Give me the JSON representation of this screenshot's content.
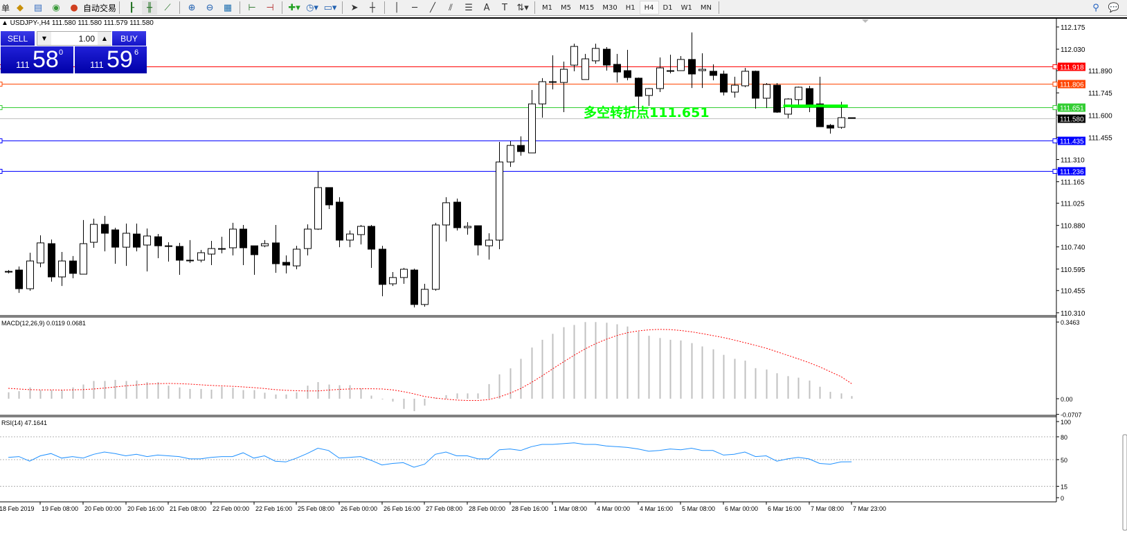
{
  "toolbar": {
    "menu_fragment": "单",
    "autotrade_label": "自动交易",
    "icons": [
      "orders-icon",
      "navigator-icon",
      "signal-icon",
      "autotrade-icon",
      "bar-chart-icon",
      "candlestick-icon",
      "line-chart-icon",
      "zoom-in-icon",
      "zoom-out-icon",
      "tile-windows-icon",
      "chart-shift-icon",
      "autoscroll-icon",
      "indicators-icon",
      "periods-icon",
      "templates-icon",
      "cursor-icon",
      "crosshair-icon",
      "vertical-line-icon",
      "horizontal-line-icon",
      "trendline-icon",
      "equidistant-channel-icon",
      "fibonacci-icon",
      "text-icon",
      "text-label-icon",
      "arrows-icon"
    ],
    "timeframes": [
      "M1",
      "M5",
      "M15",
      "M30",
      "H1",
      "H4",
      "D1",
      "W1",
      "MN"
    ],
    "active_timeframe": "H4",
    "search_icon": "search-icon",
    "chat_icon": "chat-icon"
  },
  "chart_header": "▲ USDJPY-,H4  111.580 111.580 111.579 111.580",
  "trade_panel": {
    "sell_label": "SELL",
    "buy_label": "BUY",
    "lot_value": "1.00",
    "sell_price": {
      "small": "111",
      "big": "58",
      "sup": "0"
    },
    "buy_price": {
      "small": "111",
      "big": "59",
      "sup": "6"
    }
  },
  "annotation": {
    "text": "多空转折点111.651",
    "color": "#00ff00"
  },
  "chart_data": [
    {
      "type": "candlestick",
      "symbol": "USDJPY-",
      "timeframe": "H4",
      "ylim": [
        110.31,
        112.175
      ],
      "price_ticks": [
        "112.175",
        "112.030",
        "111.890",
        "111.745",
        "111.600",
        "111.455",
        "111.310",
        "111.165",
        "111.025",
        "110.880",
        "110.740",
        "110.595",
        "110.455",
        "110.310"
      ],
      "x_tick_labels": [
        "18 Feb 2019",
        "19 Feb 08:00",
        "20 Feb 00:00",
        "20 Feb 16:00",
        "21 Feb 08:00",
        "22 Feb 00:00",
        "22 Feb 16:00",
        "25 Feb 08:00",
        "26 Feb 00:00",
        "26 Feb 16:00",
        "27 Feb 08:00",
        "28 Feb 00:00",
        "28 Feb 16:00",
        "1 Mar 08:00",
        "4 Mar 00:00",
        "4 Mar 16:00",
        "5 Mar 08:00",
        "6 Mar 00:00",
        "6 Mar 16:00",
        "7 Mar 08:00",
        "7 Mar 23:00"
      ],
      "ohlc": [
        [
          110.576,
          110.589,
          110.567,
          110.58
        ],
        [
          110.589,
          110.612,
          110.44,
          110.467
        ],
        [
          110.467,
          110.702,
          110.454,
          110.648
        ],
        [
          110.635,
          110.815,
          110.607,
          110.766
        ],
        [
          110.761,
          110.788,
          110.513,
          110.544
        ],
        [
          110.544,
          110.707,
          110.485,
          110.648
        ],
        [
          110.648,
          110.68,
          110.535,
          110.567
        ],
        [
          110.562,
          110.915,
          110.562,
          110.761
        ],
        [
          110.77,
          110.924,
          110.734,
          110.887
        ],
        [
          110.887,
          110.942,
          110.711,
          110.829
        ],
        [
          110.851,
          110.865,
          110.63,
          110.738
        ],
        [
          110.738,
          110.892,
          110.616,
          110.829
        ],
        [
          110.824,
          110.892,
          110.711,
          110.738
        ],
        [
          110.752,
          110.86,
          110.58,
          110.811
        ],
        [
          110.806,
          110.824,
          110.666,
          110.747
        ],
        [
          110.747,
          110.77,
          110.644,
          110.743
        ],
        [
          110.743,
          110.766,
          110.558,
          110.653
        ],
        [
          110.653,
          110.784,
          110.635,
          110.653
        ],
        [
          110.653,
          110.72,
          110.639,
          110.702
        ],
        [
          110.693,
          110.779,
          110.621,
          110.729
        ],
        [
          110.729,
          110.806,
          110.698,
          110.729
        ],
        [
          110.734,
          110.897,
          110.684,
          110.856
        ],
        [
          110.856,
          110.883,
          110.621,
          110.734
        ],
        [
          110.747,
          110.747,
          110.558,
          110.689
        ],
        [
          110.747,
          110.784,
          110.738,
          110.761
        ],
        [
          110.766,
          110.883,
          110.571,
          110.63
        ],
        [
          110.639,
          110.684,
          110.567,
          110.621
        ],
        [
          110.616,
          110.747,
          110.594,
          110.725
        ],
        [
          110.729,
          110.887,
          110.684,
          110.856
        ],
        [
          110.856,
          111.231,
          110.851,
          111.127
        ],
        [
          111.127,
          111.127,
          110.987,
          111.014
        ],
        [
          111.032,
          111.064,
          110.738,
          110.784
        ],
        [
          110.784,
          110.847,
          110.738,
          110.824
        ],
        [
          110.82,
          110.883,
          110.756,
          110.874
        ],
        [
          110.874,
          110.883,
          110.603,
          110.725
        ],
        [
          110.725,
          110.747,
          110.418,
          110.495
        ],
        [
          110.499,
          110.576,
          110.485,
          110.54
        ],
        [
          110.54,
          110.603,
          110.499,
          110.594
        ],
        [
          110.589,
          110.598,
          110.345,
          110.364
        ],
        [
          110.364,
          110.499,
          110.35,
          110.463
        ],
        [
          110.463,
          110.897,
          110.454,
          110.883
        ],
        [
          110.883,
          111.064,
          110.775,
          111.028
        ],
        [
          111.032,
          111.055,
          110.847,
          110.865
        ],
        [
          110.865,
          110.901,
          110.82,
          110.874
        ],
        [
          110.878,
          110.878,
          110.684,
          110.752
        ],
        [
          110.747,
          110.829,
          110.657,
          110.784
        ],
        [
          110.784,
          111.425,
          110.725,
          111.294
        ],
        [
          111.294,
          111.43,
          111.262,
          111.402
        ],
        [
          111.402,
          111.461,
          111.335,
          111.362
        ],
        [
          111.353,
          111.764,
          111.353,
          111.673
        ],
        [
          111.673,
          111.841,
          111.583,
          111.818
        ],
        [
          111.818,
          111.99,
          111.768,
          111.818
        ],
        [
          111.813,
          111.949,
          111.619,
          111.899
        ],
        [
          111.926,
          112.066,
          111.886,
          112.048
        ],
        [
          111.832,
          111.999,
          111.832,
          111.967
        ],
        [
          111.954,
          112.066,
          111.935,
          112.035
        ],
        [
          112.03,
          112.044,
          111.89,
          111.926
        ],
        [
          111.931,
          111.999,
          111.813,
          111.881
        ],
        [
          111.89,
          112.026,
          111.827,
          111.845
        ],
        [
          111.841,
          111.845,
          111.637,
          111.723
        ],
        [
          111.728,
          111.777,
          111.66,
          111.773
        ],
        [
          111.773,
          111.976,
          111.75,
          111.908
        ],
        [
          111.886,
          111.994,
          111.872,
          111.89
        ],
        [
          111.89,
          111.985,
          111.89,
          111.963
        ],
        [
          111.963,
          112.139,
          111.777,
          111.868
        ],
        [
          111.89,
          112.003,
          111.777,
          111.899
        ],
        [
          111.886,
          111.931,
          111.827,
          111.859
        ],
        [
          111.868,
          111.89,
          111.728,
          111.75
        ],
        [
          111.75,
          111.85,
          111.714,
          111.795
        ],
        [
          111.791,
          111.908,
          111.782,
          111.886
        ],
        [
          111.886,
          111.89,
          111.642,
          111.71
        ],
        [
          111.71,
          111.809,
          111.646,
          111.8
        ],
        [
          111.795,
          111.809,
          111.615,
          111.619
        ],
        [
          111.606,
          111.71,
          111.579,
          111.705
        ],
        [
          111.701,
          111.786,
          111.651,
          111.782
        ],
        [
          111.773,
          111.791,
          111.619,
          111.669
        ],
        [
          111.673,
          111.85,
          111.524,
          111.524
        ],
        [
          111.533,
          111.542,
          111.479,
          111.515
        ],
        [
          111.52,
          111.687,
          111.511,
          111.583
        ],
        [
          111.583,
          111.583,
          111.579,
          111.58
        ]
      ],
      "hlines": [
        {
          "price": "111.918",
          "color": "#ff0000"
        },
        {
          "price": "111.806",
          "color": "#ff4500"
        },
        {
          "price": "111.651",
          "color": "#32cd32"
        },
        {
          "price": "111.580",
          "color": "#c0c0c0",
          "label_bg": "#000000"
        },
        {
          "price": "111.435",
          "color": "#0000ff"
        },
        {
          "price": "111.236",
          "color": "#0000ff"
        }
      ],
      "pivot_segment": {
        "price": 111.651,
        "from_candle": 73,
        "to_candle": 79,
        "color": "#00ff00"
      }
    },
    {
      "type": "bar+line",
      "title": "MACD(12,26,9) 0.0119 0.0681",
      "ylim": [
        -0.0707,
        0.3463
      ],
      "y_ticks": [
        "0.3463",
        "0.00",
        "-0.0707"
      ],
      "histogram": [
        0.029,
        0.034,
        0.051,
        0.039,
        0.039,
        0.039,
        0.051,
        0.064,
        0.08,
        0.08,
        0.085,
        0.08,
        0.082,
        0.075,
        0.075,
        0.059,
        0.051,
        0.044,
        0.044,
        0.041,
        0.054,
        0.049,
        0.039,
        0.039,
        0.027,
        0.019,
        0.019,
        0.029,
        0.059,
        0.075,
        0.064,
        0.061,
        0.061,
        0.046,
        0.014,
        -0.003,
        -0.013,
        -0.046,
        -0.056,
        -0.031,
        0.004,
        0.016,
        0.024,
        0.024,
        0.024,
        0.066,
        0.11,
        0.137,
        0.18,
        0.231,
        0.266,
        0.293,
        0.323,
        0.333,
        0.346,
        0.346,
        0.343,
        0.336,
        0.326,
        0.303,
        0.284,
        0.274,
        0.266,
        0.263,
        0.251,
        0.236,
        0.223,
        0.198,
        0.18,
        0.172,
        0.138,
        0.132,
        0.115,
        0.102,
        0.095,
        0.082,
        0.054,
        0.031,
        0.024,
        0.0119
      ],
      "signal": [
        0.047,
        0.044,
        0.041,
        0.04,
        0.04,
        0.039,
        0.04,
        0.041,
        0.044,
        0.048,
        0.053,
        0.058,
        0.062,
        0.066,
        0.068,
        0.069,
        0.068,
        0.066,
        0.063,
        0.06,
        0.058,
        0.056,
        0.053,
        0.05,
        0.046,
        0.041,
        0.038,
        0.036,
        0.035,
        0.035,
        0.039,
        0.042,
        0.044,
        0.045,
        0.045,
        0.044,
        0.04,
        0.032,
        0.022,
        0.01,
        0.003,
        -0.002,
        -0.006,
        -0.008,
        -0.008,
        -0.004,
        0.008,
        0.025,
        0.046,
        0.073,
        0.103,
        0.135,
        0.166,
        0.196,
        0.224,
        0.248,
        0.268,
        0.285,
        0.298,
        0.306,
        0.311,
        0.313,
        0.312,
        0.308,
        0.302,
        0.294,
        0.285,
        0.276,
        0.265,
        0.253,
        0.241,
        0.228,
        0.212,
        0.196,
        0.18,
        0.163,
        0.144,
        0.122,
        0.1,
        0.0681
      ],
      "histogram_color": "#c0c0c0",
      "signal_color": "#ff0000"
    },
    {
      "type": "line",
      "title": "RSI(14) 47.1641",
      "ylim": [
        0,
        100
      ],
      "y_ticks": [
        "100",
        "80",
        "50",
        "15",
        "0"
      ],
      "levels": [
        80,
        50,
        15
      ],
      "values": [
        53,
        54,
        48,
        55,
        58,
        52,
        54,
        52,
        57,
        60,
        58,
        55,
        57,
        54,
        56,
        55,
        54,
        51,
        51,
        53,
        54,
        54,
        59,
        52,
        55,
        48,
        47,
        52,
        58,
        65,
        62,
        52,
        53,
        54,
        49,
        43,
        45,
        46,
        40,
        44,
        57,
        60,
        55,
        55,
        51,
        51,
        63,
        64,
        62,
        67,
        70,
        70,
        71,
        72,
        70,
        70,
        68,
        67,
        66,
        64,
        61,
        62,
        64,
        63,
        65,
        62,
        62,
        56,
        57,
        60,
        54,
        55,
        48,
        51,
        53,
        51,
        45,
        44,
        47,
        47.1641
      ],
      "color": "#1e90ff"
    }
  ]
}
